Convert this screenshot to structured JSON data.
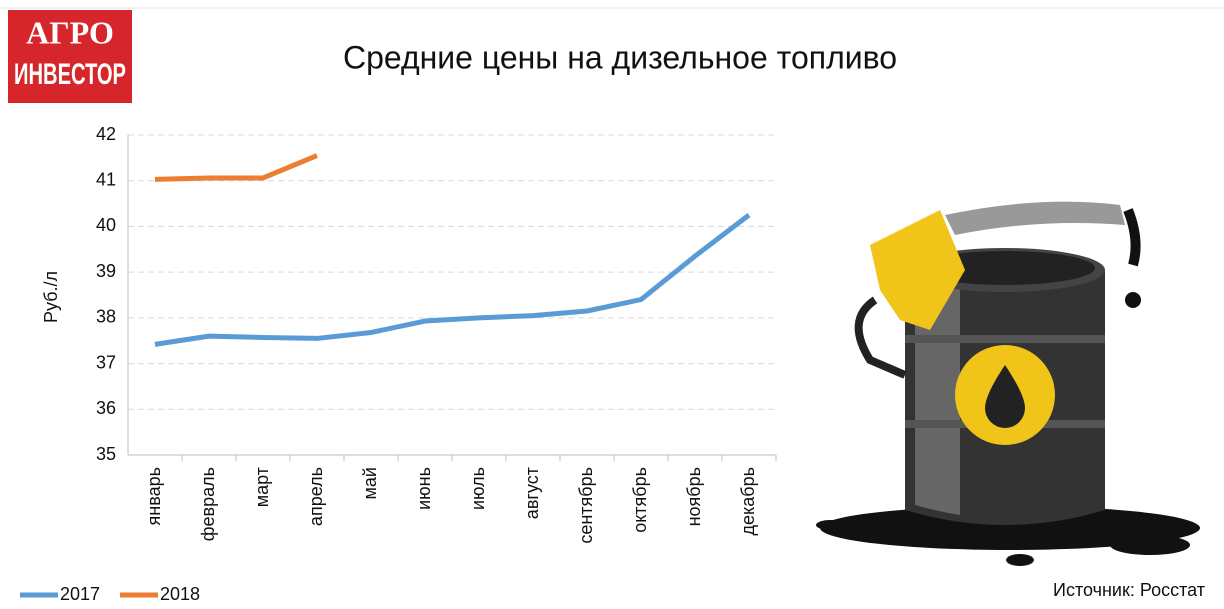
{
  "chart_data": {
    "type": "line",
    "logo": [
      "АГРО",
      "ИНВЕСТОР"
    ],
    "title": "Средние цены на дизельное топливо",
    "y_label": "Руб./л",
    "source": "Источник: Росстат",
    "categories": [
      "январь",
      "февраль",
      "март",
      "апрель",
      "май",
      "июнь",
      "июль",
      "август",
      "сентябрь",
      "октябрь",
      "ноябрь",
      "декабрь"
    ],
    "series": [
      {
        "name": "2017",
        "color": "#5b9bd5",
        "values": [
          37.42,
          37.6,
          37.57,
          37.55,
          37.68,
          37.93,
          38.0,
          38.05,
          38.15,
          38.4,
          39.35,
          40.25
        ]
      },
      {
        "name": "2018",
        "color": "#ed7d31",
        "values": [
          41.03,
          41.06,
          41.06,
          41.55,
          null,
          null,
          null,
          null,
          null,
          null,
          null,
          null
        ]
      }
    ],
    "ylim": [
      35,
      42
    ],
    "yticks": [
      35,
      36,
      37,
      38,
      39,
      40,
      41,
      42
    ],
    "grid": true,
    "legend": "bottom-left"
  }
}
